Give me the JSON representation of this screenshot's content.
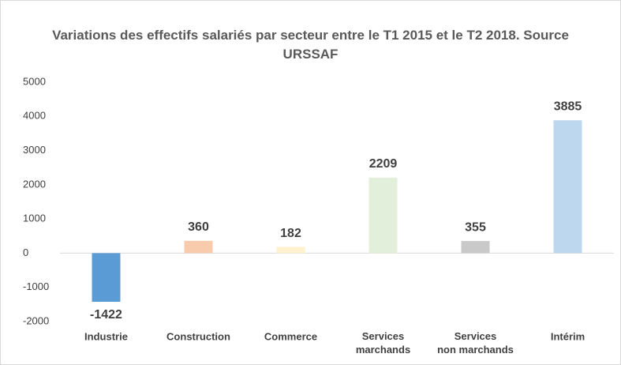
{
  "chart_data": {
    "type": "bar",
    "title": "Variations des effectifs salariés par secteur entre le T1 2015 et le T2 2018. Source URSSAF",
    "categories": [
      "Industrie",
      "Construction",
      "Commerce",
      "Services marchands",
      "Services non marchands",
      "Intérim"
    ],
    "values": [
      -1422,
      360,
      182,
      2209,
      355,
      3885
    ],
    "colors": [
      "#5b9bd5",
      "#f8cbad",
      "#fff2cc",
      "#e2efda",
      "#c9c9c9",
      "#bdd7ee"
    ],
    "ylim": [
      -2000,
      5000
    ],
    "yticks": [
      -2000,
      -1000,
      0,
      1000,
      2000,
      3000,
      4000,
      5000
    ],
    "grid": false
  }
}
